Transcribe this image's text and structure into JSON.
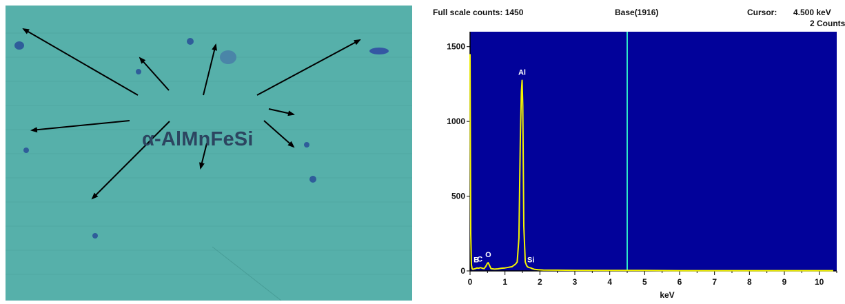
{
  "micrograph": {
    "label": "α-AlMnFeSi",
    "background_color": "#56b0aa",
    "arrow_color": "#000000"
  },
  "eds": {
    "header": {
      "full_scale": "Full scale counts: 1450",
      "base": "Base(1916)",
      "cursor_label": "Cursor:",
      "cursor_value": "4.500 keV",
      "cursor_counts": "2 Counts"
    },
    "colors": {
      "plot_background": "#02029a",
      "spectrum": "#f4f400",
      "cursor_line": "#2ee8c8"
    }
  },
  "chart_data": {
    "type": "line",
    "title": "",
    "xlabel": "keV",
    "ylabel": "",
    "xlim": [
      0,
      10.5
    ],
    "ylim": [
      0,
      1600
    ],
    "x_ticks": [
      "0",
      "1",
      "2",
      "3",
      "4",
      "5",
      "6",
      "7",
      "8",
      "9",
      "10"
    ],
    "y_ticks": [
      "0",
      "500",
      "1000",
      "1500"
    ],
    "cursor_kev": 4.5,
    "peaks": [
      {
        "label": "B",
        "x": 0.18,
        "y": 20
      },
      {
        "label": "C",
        "x": 0.28,
        "y": 25
      },
      {
        "label": "O",
        "x": 0.52,
        "y": 55
      },
      {
        "label": "Al",
        "x": 1.49,
        "y": 1275
      },
      {
        "label": "Si",
        "x": 1.74,
        "y": 20
      }
    ],
    "series": [
      {
        "x": [
          0.0,
          0.02,
          0.04,
          0.06,
          0.08,
          0.1,
          0.15,
          0.2,
          0.25,
          0.3,
          0.35,
          0.4,
          0.45,
          0.5,
          0.52,
          0.55,
          0.6,
          0.7,
          0.8,
          0.9,
          1.0,
          1.1,
          1.2,
          1.3,
          1.35,
          1.4,
          1.44,
          1.47,
          1.49,
          1.51,
          1.54,
          1.58,
          1.62,
          1.66,
          1.7,
          1.74,
          1.78,
          1.85,
          1.95,
          2.1,
          2.5,
          3.0,
          4.0,
          5.0,
          6.0,
          7.0,
          8.0,
          9.0,
          10.0,
          10.4
        ],
        "y": [
          1450,
          250,
          40,
          15,
          10,
          12,
          15,
          20,
          18,
          22,
          18,
          15,
          30,
          52,
          55,
          40,
          15,
          12,
          14,
          18,
          20,
          24,
          28,
          45,
          60,
          220,
          900,
          1200,
          1275,
          1100,
          300,
          60,
          35,
          25,
          22,
          20,
          15,
          10,
          8,
          6,
          5,
          4,
          3,
          3,
          2,
          2,
          2,
          2,
          2,
          2
        ]
      }
    ]
  }
}
